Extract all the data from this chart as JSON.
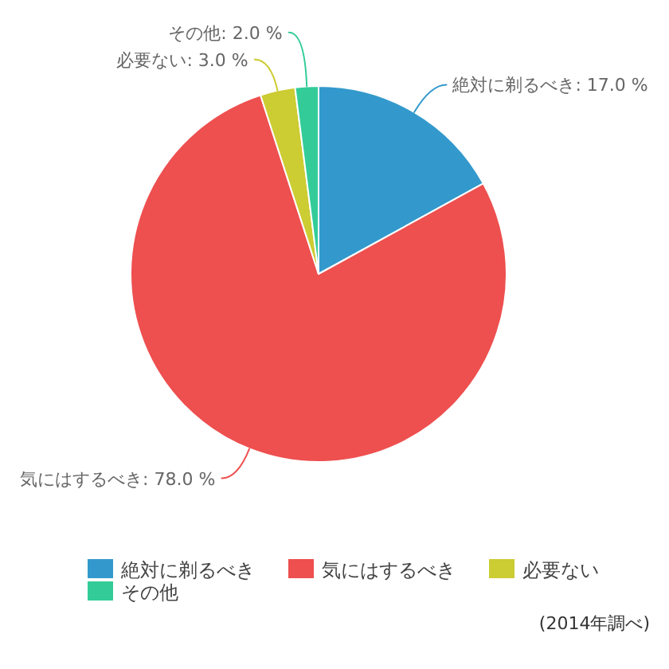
{
  "chart_data": {
    "type": "pie",
    "categories": [
      "絶対に剃るべき",
      "気にはするべき",
      "必要ない",
      "その他"
    ],
    "values": [
      17,
      78,
      3,
      2
    ],
    "colors": [
      "#3399cc",
      "#ee4f4f",
      "#cccc33",
      "#33cc99"
    ],
    "value_labels": [
      "絶対に剃るべき: 17.0 %",
      "気にはするべき: 78.0 %",
      "必要ない: 3.0 %",
      "その他: 2.0 %"
    ],
    "legend": "bottom",
    "annotations": [
      "(2014年調べ)"
    ]
  }
}
